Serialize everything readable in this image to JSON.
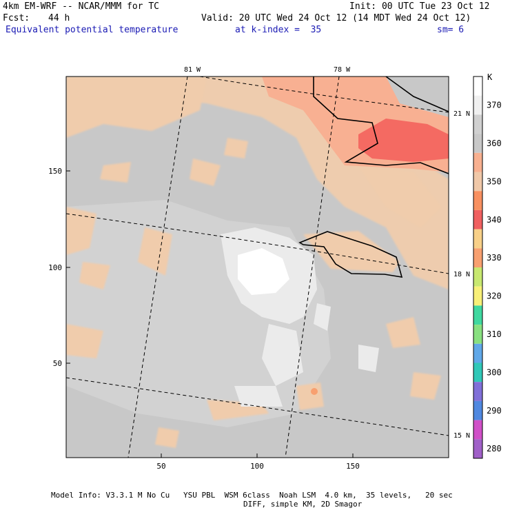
{
  "header": {
    "model_line": "4km EM-WRF -- NCAR/MMM for TC",
    "init": "Init: 00 UTC Tue 23 Oct 12",
    "fcst_label": "Fcst:",
    "fcst_value": "44 h",
    "valid": "Valid: 20 UTC Wed 24 Oct 12 (14 MDT Wed 24 Oct 12)",
    "field": "Equivalent potential temperature",
    "level": "at k-index =  35",
    "smoothing": "sm= 6"
  },
  "map": {
    "x_ticks": [
      "50",
      "100",
      "150"
    ],
    "y_ticks": [
      "50",
      "100",
      "150"
    ],
    "lon_labels": [
      "81 W",
      "78 W"
    ],
    "lat_labels": [
      "21 N",
      "18 N",
      "15 N"
    ]
  },
  "colorbar": {
    "unit": "K",
    "levels": [
      {
        "value": "370",
        "color": "#f0f0f0"
      },
      {
        "value": "360",
        "color": "#c8c8c8"
      },
      {
        "value": "350",
        "color": "#f0c8a8"
      },
      {
        "value": "340",
        "color": "#f06060"
      },
      {
        "value": "330",
        "color": "#f8a070"
      },
      {
        "value": "320",
        "color": "#f8f078"
      },
      {
        "value": "310",
        "color": "#88e080"
      },
      {
        "value": "300",
        "color": "#30c8b8"
      },
      {
        "value": "290",
        "color": "#5088e0"
      },
      {
        "value": "280",
        "color": "#a060c8"
      }
    ],
    "top_color": "#ffffff",
    "extra_colors": [
      "#d0d0d0",
      "#f8b090",
      "#f89060",
      "#f8d088",
      "#c8e870",
      "#40d8a0",
      "#60a8e8",
      "#8070d8",
      "#d050c8"
    ]
  },
  "footer": {
    "line1": "Model Info: V3.3.1 M No Cu   YSU PBL  WSM 6class  Noah LSM  4.0 km,  35 levels,   20 sec",
    "line2": "DIFF, simple KM, 2D Smagor"
  }
}
